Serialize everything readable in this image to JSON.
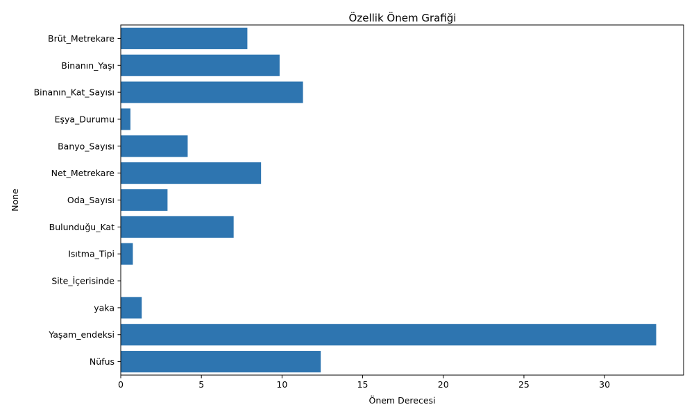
{
  "chart_data": {
    "type": "bar",
    "orientation": "horizontal",
    "title": "Özellik Önem Grafiği",
    "xlabel": "Önem Derecesi",
    "ylabel": "None",
    "categories": [
      "Brüt_Metrekare",
      "Binanın_Yaşı",
      "Binanın_Kat_Sayısı",
      "Eşya_Durumu",
      "Banyo_Sayısı",
      "Net_Metrekare",
      "Oda_Sayısı",
      "Bulunduğu_Kat",
      "Isıtma_Tipi",
      "Site_İçerisinde",
      "yaka",
      "Yaşam_endeksi",
      "Nüfus"
    ],
    "values": [
      7.85,
      9.85,
      11.3,
      0.6,
      4.15,
      8.7,
      2.9,
      7.0,
      0.75,
      0.0,
      1.3,
      33.2,
      12.4
    ],
    "xlim": [
      0,
      34.9
    ],
    "xticks": [
      0,
      5,
      10,
      15,
      20,
      25,
      30
    ],
    "bar_color": "#2e75b0",
    "grid": false
  }
}
